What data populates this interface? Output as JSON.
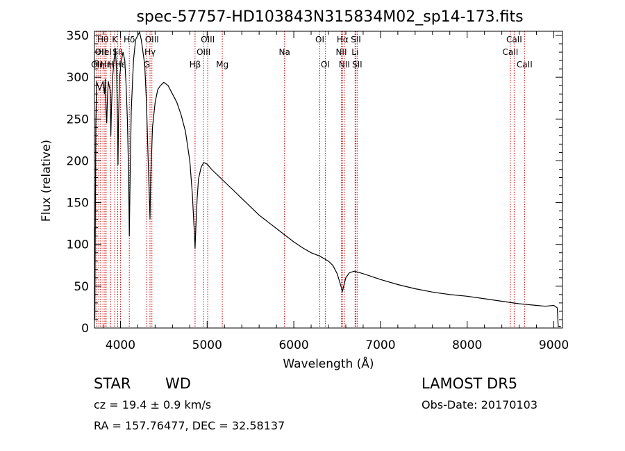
{
  "chart_data": {
    "type": "line",
    "title": "spec-57757-HD103843N315834M02_sp14-173.fits",
    "xlabel": "Wavelength (Å)",
    "ylabel": "Flux (relative)",
    "xlim": [
      3700,
      9100
    ],
    "ylim": [
      0,
      355
    ],
    "xticks": [
      4000,
      5000,
      6000,
      7000,
      8000,
      9000
    ],
    "yticks": [
      0,
      50,
      100,
      150,
      200,
      250,
      300,
      350
    ],
    "grid": false,
    "line_color": "#000000",
    "marker_color": "#cc0000",
    "series": [
      {
        "points": [
          [
            3700,
            120
          ],
          [
            3705,
            10
          ],
          [
            3715,
            240
          ],
          [
            3725,
            295
          ],
          [
            3740,
            290
          ],
          [
            3760,
            285
          ],
          [
            3780,
            290
          ],
          [
            3800,
            295
          ],
          [
            3815,
            280
          ],
          [
            3825,
            298
          ],
          [
            3835,
            260
          ],
          [
            3842,
            245
          ],
          [
            3850,
            275
          ],
          [
            3860,
            295
          ],
          [
            3870,
            290
          ],
          [
            3880,
            285
          ],
          [
            3889,
            230
          ],
          [
            3897,
            265
          ],
          [
            3910,
            300
          ],
          [
            3925,
            320
          ],
          [
            3940,
            335
          ],
          [
            3955,
            310
          ],
          [
            3962,
            270
          ],
          [
            3967,
            240
          ],
          [
            3972,
            195
          ],
          [
            3978,
            250
          ],
          [
            3990,
            300
          ],
          [
            4010,
            320
          ],
          [
            4030,
            330
          ],
          [
            4050,
            320
          ],
          [
            4065,
            290
          ],
          [
            4080,
            250
          ],
          [
            4095,
            180
          ],
          [
            4102,
            110
          ],
          [
            4110,
            170
          ],
          [
            4125,
            260
          ],
          [
            4150,
            320
          ],
          [
            4175,
            345
          ],
          [
            4200,
            350
          ],
          [
            4220,
            354
          ],
          [
            4240,
            345
          ],
          [
            4260,
            330
          ],
          [
            4280,
            315
          ],
          [
            4300,
            270
          ],
          [
            4320,
            200
          ],
          [
            4335,
            150
          ],
          [
            4341,
            130
          ],
          [
            4350,
            180
          ],
          [
            4370,
            240
          ],
          [
            4400,
            270
          ],
          [
            4430,
            285
          ],
          [
            4460,
            290
          ],
          [
            4480,
            292
          ],
          [
            4500,
            294
          ],
          [
            4550,
            290
          ],
          [
            4600,
            280
          ],
          [
            4650,
            270
          ],
          [
            4700,
            255
          ],
          [
            4750,
            235
          ],
          [
            4800,
            200
          ],
          [
            4830,
            160
          ],
          [
            4850,
            120
          ],
          [
            4861,
            95
          ],
          [
            4870,
            120
          ],
          [
            4885,
            155
          ],
          [
            4900,
            178
          ],
          [
            4930,
            192
          ],
          [
            4960,
            198
          ],
          [
            5000,
            196
          ],
          [
            5050,
            190
          ],
          [
            5100,
            185
          ],
          [
            5200,
            175
          ],
          [
            5300,
            165
          ],
          [
            5400,
            155
          ],
          [
            5500,
            145
          ],
          [
            5600,
            135
          ],
          [
            5700,
            127
          ],
          [
            5800,
            119
          ],
          [
            5900,
            111
          ],
          [
            6000,
            103
          ],
          [
            6100,
            96
          ],
          [
            6200,
            90
          ],
          [
            6300,
            86
          ],
          [
            6400,
            80
          ],
          [
            6450,
            75
          ],
          [
            6500,
            65
          ],
          [
            6530,
            55
          ],
          [
            6550,
            48
          ],
          [
            6563,
            44
          ],
          [
            6575,
            50
          ],
          [
            6600,
            60
          ],
          [
            6640,
            66
          ],
          [
            6700,
            68
          ],
          [
            6800,
            65
          ],
          [
            7000,
            58
          ],
          [
            7200,
            52
          ],
          [
            7400,
            47
          ],
          [
            7600,
            43
          ],
          [
            7800,
            40
          ],
          [
            8000,
            38
          ],
          [
            8200,
            35
          ],
          [
            8400,
            32
          ],
          [
            8600,
            29
          ],
          [
            8800,
            27
          ],
          [
            8900,
            26
          ],
          [
            9000,
            27
          ],
          [
            9040,
            24
          ],
          [
            9050,
            2
          ],
          [
            9080,
            2
          ]
        ]
      }
    ],
    "line_markers": [
      {
        "x": 3727,
        "label": "OII",
        "row": 3
      },
      {
        "x": 3750,
        "label": "Hη",
        "row": 3
      },
      {
        "x": 3771,
        "label": "OII",
        "row": 2
      },
      {
        "x": 3798,
        "label": "Hθ",
        "row": 1
      },
      {
        "x": 3820,
        "label": "HeI",
        "row": 2
      },
      {
        "x": 3835,
        "label": "Hη",
        "row": 3
      },
      {
        "x": 3889,
        "label": "H",
        "row": 3
      },
      {
        "x": 3934,
        "label": "K",
        "row": 1
      },
      {
        "x": 3968,
        "label": "SII",
        "row": 2
      },
      {
        "x": 4000,
        "label": "Hε",
        "row": 3
      },
      {
        "x": 4102,
        "label": "Hδ",
        "row": 1
      },
      {
        "x": 4304,
        "label": "G",
        "row": 3
      },
      {
        "x": 4341,
        "label": "Hγ",
        "row": 2
      },
      {
        "x": 4363,
        "label": "OIII",
        "row": 1
      },
      {
        "x": 4861,
        "label": "Hβ",
        "row": 3
      },
      {
        "x": 4959,
        "label": "OIII",
        "row": 2
      },
      {
        "x": 5007,
        "label": "OIII",
        "row": 1
      },
      {
        "x": 5175,
        "label": "Mg",
        "row": 3
      },
      {
        "x": 5893,
        "label": "Na",
        "row": 2
      },
      {
        "x": 6300,
        "label": "OI",
        "row": 1
      },
      {
        "x": 6363,
        "label": "OI",
        "row": 3
      },
      {
        "x": 6548,
        "label": "NII",
        "row": 2
      },
      {
        "x": 6563,
        "label": "Hα",
        "row": 1
      },
      {
        "x": 6583,
        "label": "NII",
        "row": 3
      },
      {
        "x": 6707,
        "label": "Li",
        "row": 2
      },
      {
        "x": 6716,
        "label": "SII",
        "row": 1
      },
      {
        "x": 6731,
        "label": "SII",
        "row": 3
      },
      {
        "x": 8498,
        "label": "CaII",
        "row": 2
      },
      {
        "x": 8542,
        "label": "CaII",
        "row": 1
      },
      {
        "x": 8662,
        "label": "CaII",
        "row": 3
      }
    ]
  },
  "info": {
    "object_class": "STAR",
    "subclass": "WD",
    "survey": "LAMOST  DR5",
    "cz": "cz = 19.4 ± 0.9 km/s",
    "obs_date": "Obs-Date: 20170103",
    "coords": "RA = 157.76477, DEC =  32.58137"
  }
}
